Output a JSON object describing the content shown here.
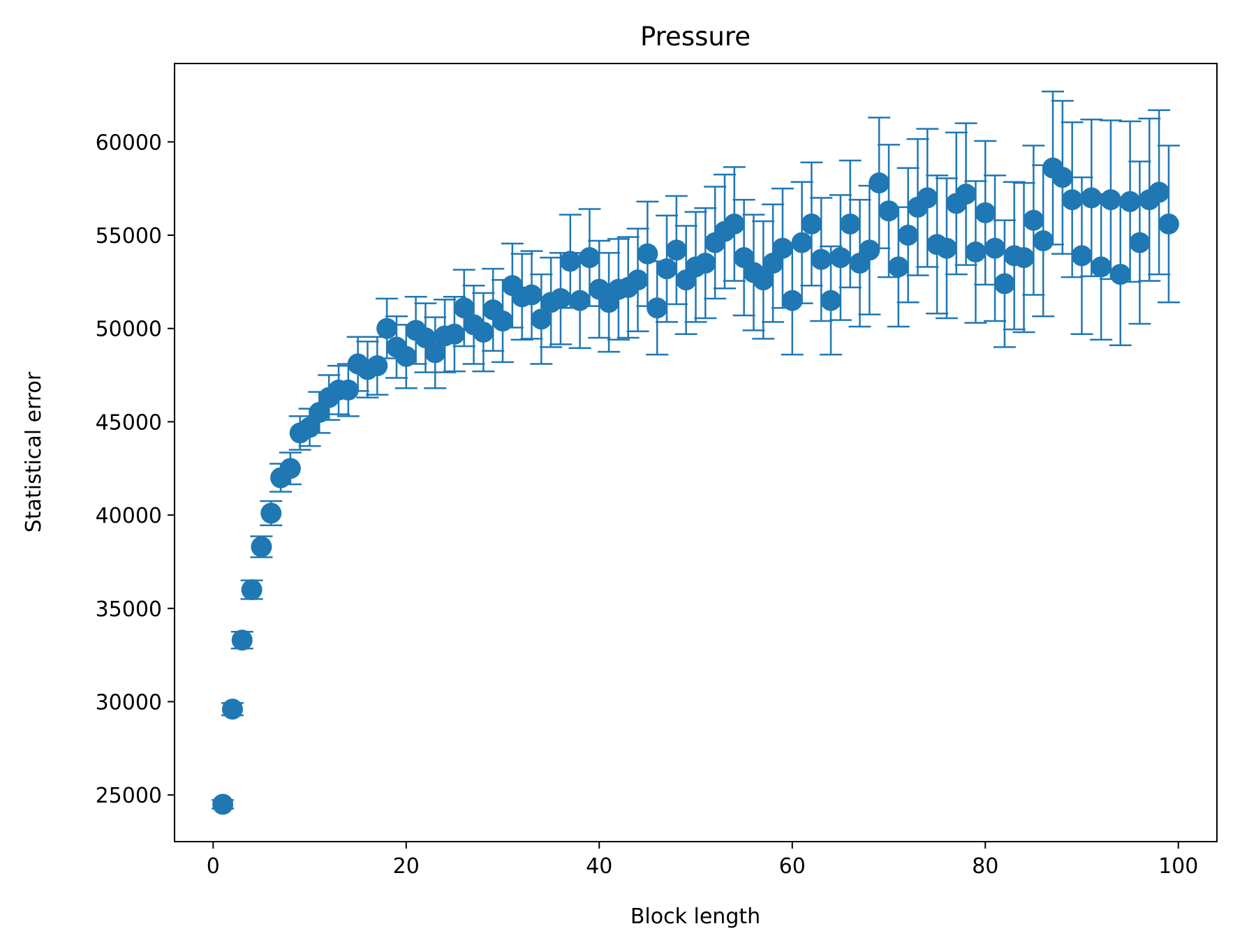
{
  "chart_data": {
    "type": "scatter",
    "title": "Pressure",
    "xlabel": "Block length",
    "ylabel": "Statistical error",
    "xlim": [
      -4,
      104
    ],
    "ylim": [
      22500,
      64200
    ],
    "xticks": [
      0,
      20,
      40,
      60,
      80,
      100
    ],
    "xtick_labels": [
      "0",
      "20",
      "40",
      "60",
      "80",
      "100"
    ],
    "yticks": [
      25000,
      30000,
      35000,
      40000,
      45000,
      50000,
      55000,
      60000
    ],
    "ytick_labels": [
      "25000",
      "30000",
      "35000",
      "40000",
      "45000",
      "50000",
      "55000",
      "60000"
    ],
    "grid": false,
    "legend": "none",
    "color": "#1f77b4",
    "series": [
      {
        "x": [
          1,
          2,
          3,
          4,
          5,
          6,
          7,
          8,
          9,
          10,
          11,
          12,
          13,
          14,
          15,
          16,
          17,
          18,
          19,
          20,
          21,
          22,
          23,
          24,
          25,
          26,
          27,
          28,
          29,
          30,
          31,
          32,
          33,
          34,
          35,
          36,
          37,
          38,
          39,
          40,
          41,
          42,
          43,
          44,
          45,
          46,
          47,
          48,
          49,
          50,
          51,
          52,
          53,
          54,
          55,
          56,
          57,
          58,
          59,
          60,
          61,
          62,
          63,
          64,
          65,
          66,
          67,
          68,
          69,
          70,
          71,
          72,
          73,
          74,
          75,
          76,
          77,
          78,
          79,
          80,
          81,
          82,
          83,
          84,
          85,
          86,
          87,
          88,
          89,
          90,
          91,
          92,
          93,
          94,
          95,
          96,
          97,
          98,
          99
        ],
        "y": [
          24500,
          29600,
          33300,
          36000,
          38300,
          40100,
          42000,
          42500,
          44400,
          44700,
          45500,
          46300,
          46700,
          46700,
          48100,
          47800,
          48000,
          50000,
          49000,
          48500,
          49900,
          49500,
          48700,
          49600,
          49700,
          51100,
          50200,
          49800,
          51000,
          50400,
          52300,
          51700,
          51800,
          50500,
          51400,
          51600,
          53600,
          51500,
          53800,
          52100,
          51400,
          52100,
          52200,
          52600,
          54000,
          51100,
          53200,
          54200,
          52600,
          53300,
          53500,
          54600,
          55200,
          55600,
          53800,
          53000,
          52600,
          53500,
          54300,
          51500,
          54600,
          55600,
          53700,
          51500,
          53800,
          55600,
          53500,
          54200,
          57800,
          56300,
          53300,
          55000,
          56500,
          57000,
          54500,
          54300,
          56700,
          57200,
          54100,
          56200,
          54300,
          52400,
          53900,
          53800,
          55800,
          54700,
          58600,
          58100,
          56900,
          53900,
          57000,
          53300,
          56900,
          52900,
          56800,
          54600,
          56900,
          57300,
          55600
        ],
        "yerr": [
          230,
          330,
          450,
          500,
          560,
          650,
          750,
          850,
          900,
          1000,
          1100,
          1200,
          1300,
          1400,
          1450,
          1500,
          1550,
          1600,
          1650,
          1700,
          1800,
          1850,
          1900,
          1950,
          2000,
          2050,
          2100,
          2100,
          2200,
          2200,
          2250,
          2300,
          2350,
          2400,
          2400,
          2450,
          2500,
          2550,
          2600,
          2600,
          2650,
          2700,
          2700,
          2750,
          2800,
          2500,
          2850,
          2900,
          2900,
          2950,
          2950,
          3000,
          3050,
          3050,
          3100,
          3100,
          3150,
          3150,
          3200,
          2900,
          3250,
          3300,
          3300,
          2900,
          3350,
          3400,
          3400,
          3450,
          3500,
          3550,
          3200,
          3600,
          3650,
          3700,
          3700,
          3750,
          3800,
          3800,
          3800,
          3850,
          3900,
          3400,
          3950,
          4000,
          4000,
          4050,
          4100,
          4100,
          4150,
          4200,
          4200,
          3900,
          4250,
          3800,
          4300,
          4350,
          4350,
          4400,
          4200
        ]
      }
    ]
  }
}
